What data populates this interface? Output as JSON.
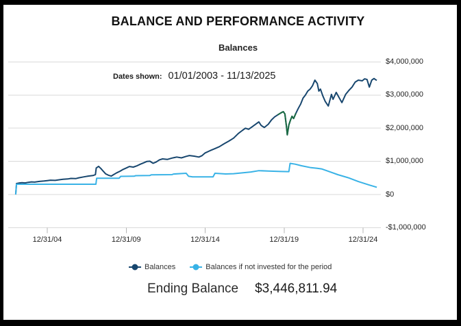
{
  "header": {
    "title": "BALANCE AND PERFORMANCE ACTIVITY",
    "subtitle": "Balances"
  },
  "dates_shown": {
    "label": "Dates shown:",
    "value": "01/01/2003 - 11/13/2025"
  },
  "ending_balance": {
    "label": "Ending Balance",
    "value": "$3,446,811.94"
  },
  "colors": {
    "balances_line": "#17466e",
    "covid_segment": "#1b6b43",
    "not_invested_line": "#38b2e6",
    "gridline": "#d9d9d9",
    "tick": "#b5b5b5",
    "frame": "#000000"
  },
  "chart_data": {
    "type": "line",
    "title": "Balances",
    "xlabel": "",
    "ylabel": "",
    "grid": true,
    "legend_position": "bottom",
    "ylim": [
      -1000000,
      4000000
    ],
    "x_range_years": [
      2003.0,
      2025.87
    ],
    "y_ticks": {
      "labels": [
        "$4,000,000",
        "$3,000,000",
        "$2,000,000",
        "$1,000,000",
        "$0",
        "-$1,000,000"
      ],
      "values": [
        4000000,
        3000000,
        2000000,
        1000000,
        0,
        -1000000
      ]
    },
    "x_ticks": {
      "labels": [
        "12/31/04",
        "12/31/09",
        "12/31/14",
        "12/31/19",
        "12/31/24"
      ],
      "years": [
        2005,
        2010,
        2015,
        2020,
        2025
      ]
    },
    "series": [
      {
        "name": "Balances",
        "color": "#17466e",
        "points": [
          [
            2003.0,
            0
          ],
          [
            2003.05,
            330000
          ],
          [
            2003.2,
            345000
          ],
          [
            2003.4,
            355000
          ],
          [
            2003.6,
            350000
          ],
          [
            2003.8,
            368000
          ],
          [
            2004.0,
            380000
          ],
          [
            2004.2,
            375000
          ],
          [
            2004.5,
            395000
          ],
          [
            2004.8,
            408000
          ],
          [
            2005.0,
            420000
          ],
          [
            2005.2,
            432000
          ],
          [
            2005.5,
            425000
          ],
          [
            2005.8,
            447000
          ],
          [
            2006.0,
            458000
          ],
          [
            2006.3,
            470000
          ],
          [
            2006.5,
            486000
          ],
          [
            2006.8,
            479000
          ],
          [
            2007.0,
            505000
          ],
          [
            2007.3,
            532000
          ],
          [
            2007.6,
            556000
          ],
          [
            2007.9,
            572000
          ],
          [
            2008.05,
            600000
          ],
          [
            2008.1,
            800000
          ],
          [
            2008.25,
            850000
          ],
          [
            2008.4,
            780000
          ],
          [
            2008.55,
            700000
          ],
          [
            2008.7,
            622000
          ],
          [
            2008.9,
            576000
          ],
          [
            2009.05,
            556000
          ],
          [
            2009.2,
            600000
          ],
          [
            2009.4,
            655000
          ],
          [
            2009.6,
            700000
          ],
          [
            2009.8,
            756000
          ],
          [
            2010.0,
            800000
          ],
          [
            2010.2,
            845000
          ],
          [
            2010.45,
            826000
          ],
          [
            2010.7,
            870000
          ],
          [
            2010.9,
            915000
          ],
          [
            2011.1,
            955000
          ],
          [
            2011.3,
            995000
          ],
          [
            2011.5,
            1005000
          ],
          [
            2011.7,
            942000
          ],
          [
            2011.9,
            980000
          ],
          [
            2012.1,
            1045000
          ],
          [
            2012.3,
            1075000
          ],
          [
            2012.6,
            1058000
          ],
          [
            2012.9,
            1100000
          ],
          [
            2013.2,
            1130000
          ],
          [
            2013.5,
            1105000
          ],
          [
            2013.8,
            1150000
          ],
          [
            2014.0,
            1175000
          ],
          [
            2014.3,
            1158000
          ],
          [
            2014.6,
            1130000
          ],
          [
            2014.8,
            1172000
          ],
          [
            2015.0,
            1255000
          ],
          [
            2015.3,
            1320000
          ],
          [
            2015.6,
            1380000
          ],
          [
            2015.9,
            1442000
          ],
          [
            2016.2,
            1530000
          ],
          [
            2016.5,
            1612000
          ],
          [
            2016.8,
            1700000
          ],
          [
            2017.1,
            1840000
          ],
          [
            2017.35,
            1932000
          ],
          [
            2017.55,
            2000000
          ],
          [
            2017.75,
            1966000
          ],
          [
            2018.0,
            2052000
          ],
          [
            2018.2,
            2122000
          ],
          [
            2018.4,
            2190000
          ],
          [
            2018.55,
            2082000
          ],
          [
            2018.75,
            2022000
          ],
          [
            2019.0,
            2120000
          ],
          [
            2019.2,
            2250000
          ],
          [
            2019.4,
            2340000
          ],
          [
            2019.6,
            2402000
          ],
          [
            2019.8,
            2462000
          ],
          [
            2019.95,
            2500000
          ],
          [
            2020.05,
            2430000
          ],
          [
            2020.15,
            2050000
          ],
          [
            2020.2,
            1800000
          ],
          [
            2020.3,
            2100000
          ],
          [
            2020.4,
            2242000
          ],
          [
            2020.5,
            2360000
          ],
          [
            2020.6,
            2292000
          ],
          [
            2020.75,
            2452000
          ],
          [
            2020.9,
            2600000
          ],
          [
            2021.05,
            2732000
          ],
          [
            2021.2,
            2910000
          ],
          [
            2021.35,
            3002000
          ],
          [
            2021.5,
            3120000
          ],
          [
            2021.65,
            3182000
          ],
          [
            2021.8,
            3282000
          ],
          [
            2021.95,
            3450000
          ],
          [
            2022.1,
            3350000
          ],
          [
            2022.2,
            3120000
          ],
          [
            2022.3,
            3180000
          ],
          [
            2022.45,
            2980000
          ],
          [
            2022.6,
            2812000
          ],
          [
            2022.8,
            2670000
          ],
          [
            2023.0,
            3020000
          ],
          [
            2023.1,
            2872000
          ],
          [
            2023.3,
            3080000
          ],
          [
            2023.66,
            2772000
          ],
          [
            2023.9,
            3020000
          ],
          [
            2024.1,
            3140000
          ],
          [
            2024.3,
            3240000
          ],
          [
            2024.5,
            3390000
          ],
          [
            2024.7,
            3450000
          ],
          [
            2024.95,
            3430000
          ],
          [
            2025.1,
            3490000
          ],
          [
            2025.25,
            3470000
          ],
          [
            2025.4,
            3240000
          ],
          [
            2025.55,
            3450000
          ],
          [
            2025.7,
            3500000
          ],
          [
            2025.8,
            3460000
          ],
          [
            2025.87,
            3446812
          ]
        ]
      },
      {
        "name": "Balances if not invested for the period",
        "color": "#38b2e6",
        "points": [
          [
            2003.0,
            0
          ],
          [
            2003.05,
            310000
          ],
          [
            2004.0,
            310000
          ],
          [
            2005.0,
            310000
          ],
          [
            2006.0,
            310000
          ],
          [
            2007.0,
            310000
          ],
          [
            2008.08,
            310000
          ],
          [
            2008.13,
            490000
          ],
          [
            2009.55,
            490000
          ],
          [
            2009.65,
            548000
          ],
          [
            2010.5,
            552000
          ],
          [
            2010.6,
            568000
          ],
          [
            2011.5,
            575000
          ],
          [
            2011.6,
            595000
          ],
          [
            2012.9,
            600000
          ],
          [
            2013.0,
            618000
          ],
          [
            2013.8,
            640000
          ],
          [
            2013.95,
            550000
          ],
          [
            2014.2,
            530000
          ],
          [
            2015.5,
            530000
          ],
          [
            2015.62,
            640000
          ],
          [
            2016.3,
            620000
          ],
          [
            2016.8,
            628000
          ],
          [
            2017.3,
            650000
          ],
          [
            2017.9,
            680000
          ],
          [
            2018.4,
            718000
          ],
          [
            2019.0,
            708000
          ],
          [
            2019.8,
            695000
          ],
          [
            2020.3,
            690000
          ],
          [
            2020.38,
            940000
          ],
          [
            2020.7,
            915000
          ],
          [
            2021.1,
            868000
          ],
          [
            2021.7,
            810000
          ],
          [
            2022.1,
            790000
          ],
          [
            2022.4,
            768000
          ],
          [
            2022.8,
            700000
          ],
          [
            2023.4,
            600000
          ],
          [
            2024.1,
            500000
          ],
          [
            2024.7,
            390000
          ],
          [
            2025.4,
            285000
          ],
          [
            2025.87,
            220000
          ]
        ]
      }
    ],
    "highlight_segment": {
      "series_index": 0,
      "color": "#1b6b43",
      "year_range": [
        2019.55,
        2020.8
      ]
    }
  }
}
